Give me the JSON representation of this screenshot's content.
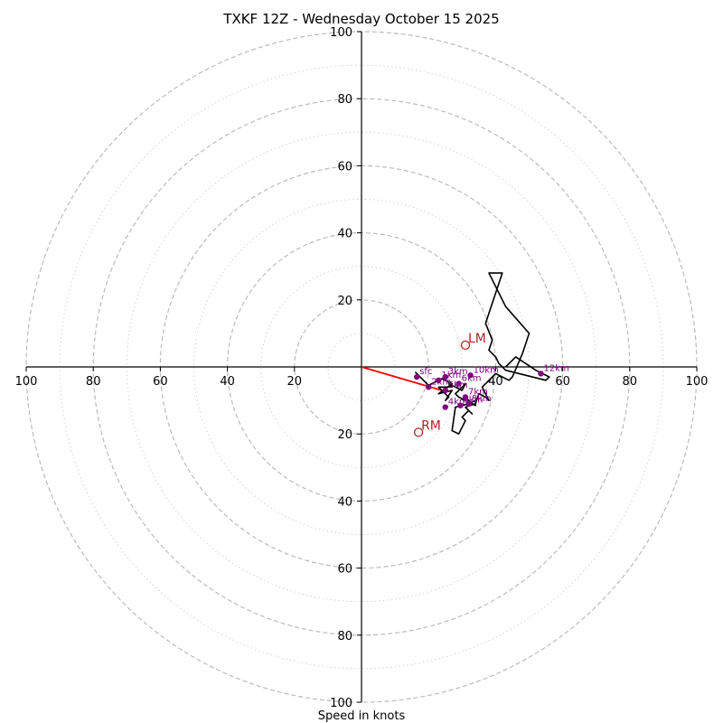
{
  "chart_data": {
    "type": "hodograph",
    "title": "TXKF 12Z - Wednesday October 15 2025",
    "xlabel": "Speed in knots",
    "units": "knots",
    "max_speed": 100,
    "ring_major": [
      20,
      40,
      60,
      80,
      100
    ],
    "ring_minor": [
      10,
      30,
      50,
      70,
      90
    ],
    "axis_tick_labels": {
      "left": [
        "100",
        "80",
        "60",
        "40",
        "20"
      ],
      "right": [
        "40",
        "60",
        "80",
        "100"
      ],
      "up": [
        "100",
        "80",
        "60",
        "40",
        "20"
      ],
      "down": [
        "20",
        "40",
        "60",
        "80",
        "100"
      ]
    },
    "trace": {
      "name": "wind profile",
      "u": [
        16,
        20,
        24,
        27,
        23,
        27,
        25,
        26,
        23,
        27,
        26,
        30,
        31,
        28,
        29,
        31,
        31,
        33,
        34,
        34,
        32,
        28,
        27,
        29,
        31,
        30,
        32,
        33,
        31,
        34,
        35,
        37,
        38,
        36,
        40,
        44,
        45,
        48,
        50,
        43,
        38,
        42,
        37,
        39,
        38,
        40,
        41,
        43,
        55,
        56,
        52,
        46,
        43
      ],
      "v": [
        -1.5,
        -5.5,
        -3.5,
        -5,
        -8,
        -7,
        -10,
        -9,
        -6,
        -6,
        -5,
        -7,
        -5,
        -8,
        -9,
        -10,
        -9,
        -11,
        -11.5,
        -10,
        -11,
        -12,
        -19,
        -20,
        -16,
        -15,
        -13,
        -14,
        -12,
        -11,
        -8,
        -9,
        -10,
        -6,
        -2,
        -4,
        -3,
        4,
        10,
        18,
        28,
        28,
        13,
        8,
        5,
        3,
        1,
        -1,
        -4,
        -3,
        -1,
        3,
        0
      ]
    },
    "height_markers": [
      {
        "label": "sfc",
        "u": 16.5,
        "v": -3
      },
      {
        "label": "2km",
        "u": 20,
        "v": -6
      },
      {
        "label": "1km",
        "u": 23,
        "v": -4
      },
      {
        "label": "3km",
        "u": 25,
        "v": -3
      },
      {
        "label": "6km",
        "u": 29,
        "v": -5
      },
      {
        "label": "5km",
        "u": 25,
        "v": -7
      },
      {
        "label": "10km",
        "u": 32.5,
        "v": -2.5
      },
      {
        "label": "12km",
        "u": 53.5,
        "v": -2
      },
      {
        "label": "7km",
        "u": 31,
        "v": -9
      },
      {
        "label": "8km",
        "u": 32,
        "v": -11
      },
      {
        "label": "9km",
        "u": 29.5,
        "v": -11.5
      },
      {
        "label": "4km",
        "u": 25,
        "v": -12
      }
    ],
    "storm_motion": [
      {
        "label": "LM",
        "u": 31,
        "v": 6.5
      },
      {
        "label": "RM",
        "u": 17,
        "v": -19.5
      }
    ],
    "mean_wind_line": {
      "u": 24,
      "v": -7
    },
    "colors": {
      "trace": "#000000",
      "markers": "#800080",
      "storm_motion": "#b22222",
      "mean_wind": "#ff0000",
      "rings": "#bbbbbb",
      "minor_rings": "#d4d4d4"
    }
  }
}
